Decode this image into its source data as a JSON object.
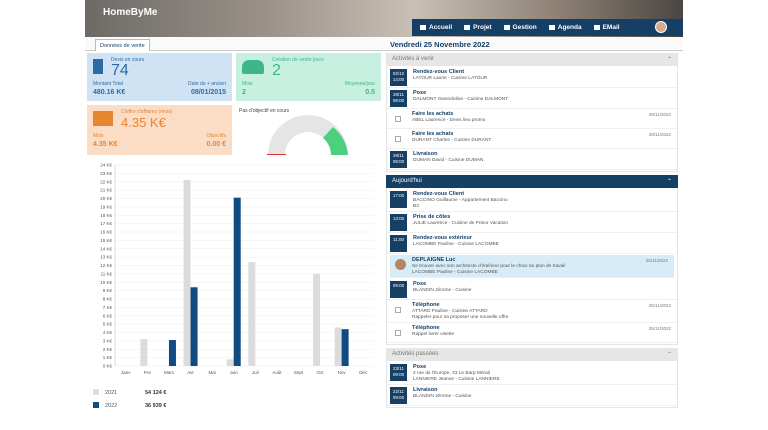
{
  "header": {
    "logo": "HomeByMe",
    "nav": [
      "Accueil",
      "Projet",
      "Gestion",
      "Agenda",
      "EMail"
    ]
  },
  "tab": "Données de vente",
  "date_heading": "Vendredi 25 Novembre 2022",
  "cards": {
    "quotes": {
      "label": "Devis en cours",
      "value": "74",
      "total_label": "Montant Total",
      "total": "480.16 K€",
      "oldest_label": "Date du + ancien",
      "oldest": "08/01/2015"
    },
    "sales": {
      "label": "Création de vente jours",
      "value": "2",
      "month_label": "Mois",
      "month": "2",
      "avg_label": "Moyenne/jour",
      "avg": "0.5"
    },
    "revenue": {
      "label": "Chiffre d'affaires (mois)",
      "value": "4.35 K€",
      "month_label": "Mois",
      "month": "4.35 K€",
      "goal_label": "Objectifs",
      "goal": "0.00 €"
    },
    "goal": {
      "label": "Pas d'objectif en cours"
    }
  },
  "sales_chart": {
    "type": "bar",
    "categories": [
      "Janv",
      "Fev",
      "Mars",
      "Avr",
      "Mai",
      "Juin",
      "Juil",
      "Août",
      "Sept",
      "Oct",
      "Nov",
      "Déc"
    ],
    "series": [
      {
        "name": "2021",
        "color": "#dcdcdc",
        "total": "54 124 €",
        "values": [
          0,
          3.2,
          0,
          22.2,
          0,
          0.8,
          12.4,
          0,
          0,
          11,
          4.6,
          0
        ]
      },
      {
        "name": "2022",
        "color": "#0f4c81",
        "total": "36 939 €",
        "values": [
          0,
          0,
          3.1,
          9.4,
          0,
          20.1,
          0,
          0,
          0,
          0,
          4.4,
          0
        ]
      }
    ],
    "ylim": [
      0,
      24
    ],
    "yticks": [
      {
        "value": 0,
        "label": "0 K€"
      },
      {
        "value": 1,
        "label": "1 K€"
      },
      {
        "value": 2,
        "label": "2 K€"
      },
      {
        "value": 3,
        "label": "3 K€"
      },
      {
        "value": 4,
        "label": "4 K€"
      },
      {
        "value": 5,
        "label": "5 K€"
      },
      {
        "value": 6,
        "label": "6 K€"
      },
      {
        "value": 7,
        "label": "7 K€"
      },
      {
        "value": 8,
        "label": "8 K€"
      },
      {
        "value": 9,
        "label": "9 K€"
      },
      {
        "value": 10,
        "label": "10 K€"
      },
      {
        "value": 11,
        "label": "11 K€"
      },
      {
        "value": 12,
        "label": "12 K€"
      },
      {
        "value": 13,
        "label": "13 K€"
      },
      {
        "value": 14,
        "label": "14 K€"
      },
      {
        "value": 15,
        "label": "15 K€"
      },
      {
        "value": 16,
        "label": "16 K€"
      },
      {
        "value": 17,
        "label": "17 K€"
      },
      {
        "value": 18,
        "label": "18 K€"
      },
      {
        "value": 19,
        "label": "19 K€"
      },
      {
        "value": 20,
        "label": "20 K€"
      },
      {
        "value": 21,
        "label": "21 K€"
      },
      {
        "value": 22,
        "label": "22 K€"
      },
      {
        "value": 23,
        "label": "23 K€"
      },
      {
        "value": 24,
        "label": "24 K€"
      }
    ],
    "grid": true
  },
  "panels": [
    {
      "heading": "Activités à venir",
      "style": "gray",
      "items": [
        {
          "date": "02/12",
          "time": "14:00",
          "title": "Rendez-vous Client",
          "lines": [
            "LATOUR Laurie - Cuisine LATOUR"
          ]
        },
        {
          "date": "28/11",
          "time": "08:00",
          "title": "Pose",
          "lines": [
            "DALMONT Gwendoline - Cuisine DALMONT"
          ]
        },
        {
          "title": "Faire les achats",
          "lines": [
            "ABEL Laurence - Devis lieu promo"
          ],
          "due": "29/11/2022"
        },
        {
          "title": "Faire les achats",
          "lines": [
            "DURANT Charles - Cuisine DURANT"
          ],
          "due": "28/11/2022"
        },
        {
          "date": "28/11",
          "time": "08:00",
          "title": "Livraison",
          "lines": [
            "DUMAN David - Cuisine DUMAN"
          ]
        }
      ]
    },
    {
      "heading": "Aujourd'hui",
      "style": "navy",
      "items": [
        {
          "time": "17:00",
          "title": "Rendez-vous Client",
          "lines": [
            "BACCINO Guillaume - Appartement Baccino",
            "B3"
          ]
        },
        {
          "time": "13:00",
          "title": "Prise de côtes",
          "lines": [
            "JULIE Laurence - Cuisine de Prieur Vacation"
          ]
        },
        {
          "time": "11:00",
          "title": "Rendez-vous extérieur",
          "lines": [
            "LACOMBE Pauline - Cuisine LACOMBE"
          ]
        },
        {
          "message": true,
          "title": "DEPLAIGNE Luc",
          "lines": [
            "Se trouver avec son architecte d'intérieur pour le choix du plan de travail",
            "LACOMBE Pauline - Cuisine LACOMBE"
          ],
          "due": "25/11/2022"
        },
        {
          "time": "09:00",
          "title": "Pose",
          "lines": [
            "BLANDIN Jérome - Cuisine"
          ]
        },
        {
          "title": "Téléphone",
          "lines": [
            "ATTARD Pauline - Cuisine ATTARD",
            "Rappeler pour sa proposer une nouvelle offre"
          ],
          "due": "25/11/2022"
        },
        {
          "title": "Téléphone",
          "lines": [
            "Rappel livrer visette"
          ],
          "due": "25/11/2022"
        }
      ]
    },
    {
      "heading": "Activités passées",
      "style": "gray",
      "items": [
        {
          "date": "23/11",
          "time": "09:00",
          "title": "Pose",
          "lines": [
            "2 rue de l'Europe, 33 Le Barp Mérail",
            "LANNIERE Jeanne - Cuisine LANNIERE"
          ]
        },
        {
          "date": "22/11",
          "time": "09:00",
          "title": "Livraison",
          "lines": [
            "BLANDIN Jérome - Cuisine"
          ]
        }
      ]
    }
  ]
}
